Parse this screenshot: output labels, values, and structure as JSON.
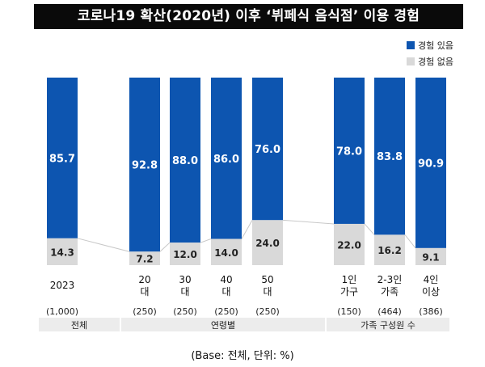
{
  "chart_data": {
    "type": "bar",
    "stacked": true,
    "title": "코로나19 확산(2020년) 이후 ‘뷔페식 음식점’ 이용 경험",
    "unit_note": "(Base: 전체, 단위: %)",
    "ylim": [
      0,
      100
    ],
    "colors": {
      "has": "#0d55b0",
      "none": "#d9d9d9"
    },
    "legend": {
      "position": "top-right",
      "items": [
        {
          "name": "경험 있음",
          "color": "#0d55b0"
        },
        {
          "name": "경험 없음",
          "color": "#d9d9d9"
        }
      ]
    },
    "categories": [
      [
        "2023"
      ],
      [
        "20",
        "대"
      ],
      [
        "30",
        "대"
      ],
      [
        "40",
        "대"
      ],
      [
        "50",
        "대"
      ],
      [
        "1인",
        "가구"
      ],
      [
        "2-3인",
        "가족"
      ],
      [
        "4인",
        "이상"
      ]
    ],
    "bases": [
      "(1,000)",
      "(250)",
      "(250)",
      "(250)",
      "(250)",
      "(150)",
      "(464)",
      "(386)"
    ],
    "series": [
      {
        "name": "경험 있음",
        "values": [
          85.7,
          92.8,
          88.0,
          86.0,
          76.0,
          78.0,
          83.8,
          90.9
        ]
      },
      {
        "name": "경험 없음",
        "values": [
          14.3,
          7.2,
          12.0,
          14.0,
          24.0,
          22.0,
          16.2,
          9.1
        ]
      }
    ],
    "value_labels": {
      "has": [
        "85.7",
        "92.8",
        "88.0",
        "86.0",
        "76.0",
        "78.0",
        "83.8",
        "90.9"
      ],
      "none": [
        "14.3",
        "7.2",
        "12.0",
        "14.0",
        "24.0",
        "22.0",
        "16.2",
        "9.1"
      ]
    },
    "groups": [
      {
        "label": "전체"
      },
      {
        "label": "연령별"
      },
      {
        "label": "가족 구성원 수"
      }
    ]
  }
}
